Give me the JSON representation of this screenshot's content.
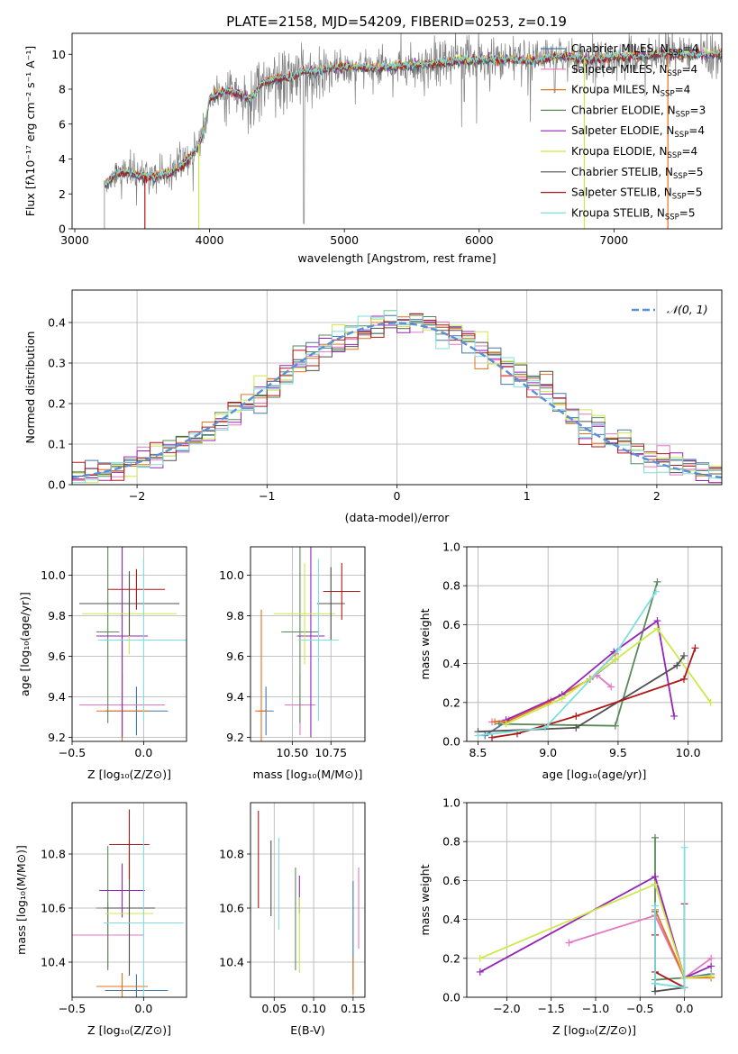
{
  "title": "PLATE=2158, MJD=54209, FIBERID=0253, z=0.19",
  "colors": {
    "chabrier_miles": "#4477aa",
    "salpeter_miles": "#e377c2",
    "kroupa_miles": "#e8701a",
    "chabrier_elodie": "#5a8a5a",
    "salpeter_elodie": "#9525b5",
    "kroupa_elodie": "#cde84a",
    "chabrier_stelib": "#505050",
    "salpeter_stelib": "#b01818",
    "kroupa_stelib": "#7fdede",
    "data": "#808080",
    "normal": "#5b8fd6",
    "grid": "#b0b0b0"
  },
  "legend": [
    {
      "label": "Chabrier MILES, N",
      "sub": "SSP",
      "tail": "=4",
      "color_key": "chabrier_miles"
    },
    {
      "label": "Salpeter MILES, N",
      "sub": "SSP",
      "tail": "=4",
      "color_key": "salpeter_miles"
    },
    {
      "label": "Kroupa MILES, N",
      "sub": "SSP",
      "tail": "=4",
      "color_key": "kroupa_miles"
    },
    {
      "label": "Chabrier ELODIE, N",
      "sub": "SSP",
      "tail": "=3",
      "color_key": "chabrier_elodie"
    },
    {
      "label": "Salpeter ELODIE, N",
      "sub": "SSP",
      "tail": "=4",
      "color_key": "salpeter_elodie"
    },
    {
      "label": "Kroupa ELODIE, N",
      "sub": "SSP",
      "tail": "=4",
      "color_key": "kroupa_elodie"
    },
    {
      "label": "Chabrier STELIB, N",
      "sub": "SSP",
      "tail": "=5",
      "color_key": "chabrier_stelib"
    },
    {
      "label": "Salpeter STELIB, N",
      "sub": "SSP",
      "tail": "=5",
      "color_key": "salpeter_stelib"
    },
    {
      "label": "Kroupa STELIB, N",
      "sub": "SSP",
      "tail": "=5",
      "color_key": "kroupa_stelib"
    }
  ],
  "chart_data": [
    {
      "type": "line",
      "panel": "spectrum",
      "xlabel": "wavelength [Angstrom, rest frame]",
      "ylabel": "Flux [fλ10⁻¹⁷ erg cm⁻² s⁻¹ A⁻¹]",
      "xlim": [
        2980,
        7800
      ],
      "ylim": [
        0,
        11.2
      ],
      "xticks": [
        3000,
        4000,
        5000,
        6000,
        7000
      ],
      "yticks": [
        0,
        2,
        4,
        6,
        8,
        10
      ],
      "grid": false,
      "legend_position": "top-right",
      "continuum": {
        "x": [
          3220,
          3300,
          3400,
          3500,
          3600,
          3700,
          3800,
          3900,
          3960,
          4000,
          4100,
          4200,
          4300,
          4400,
          4500,
          4600,
          4700,
          4800,
          4900,
          5000,
          5200,
          5400,
          5600,
          5800,
          6000,
          6200,
          6400,
          6600,
          6800,
          7000,
          7200,
          7400
        ],
        "y": [
          2.4,
          3.2,
          3.2,
          3.0,
          3.0,
          3.2,
          3.6,
          4.5,
          5.6,
          7.5,
          7.9,
          7.8,
          7.4,
          8.4,
          8.6,
          8.7,
          9.0,
          9.0,
          9.2,
          9.3,
          9.2,
          9.3,
          9.4,
          9.6,
          9.7,
          9.7,
          9.6,
          9.9,
          9.7,
          9.8,
          9.9,
          10.0
        ]
      },
      "model_start": [
        3220,
        3220,
        3220,
        3220,
        3220,
        3220,
        3220,
        3220,
        3220
      ],
      "model_end": [
        7800,
        7800,
        7800,
        7800,
        7800,
        7800,
        7800,
        7800,
        7800
      ],
      "drop_edges": [
        3520,
        3920,
        6780,
        7400
      ]
    },
    {
      "type": "bar",
      "panel": "residual-histogram",
      "xlabel": "(data-model)/error",
      "ylabel": "Normed distribution",
      "xlim": [
        -2.5,
        2.5
      ],
      "ylim": [
        0,
        0.48
      ],
      "xticks": [
        -2,
        -1,
        0,
        1,
        2
      ],
      "yticks": [
        0.0,
        0.1,
        0.2,
        0.3,
        0.4
      ],
      "grid": true,
      "legend_position": "top-right",
      "normal_label": "𝒩(0, 1)",
      "bin_width": 0.1
    },
    {
      "type": "scatter",
      "panel": "age-vs-Z",
      "xlabel": "Z [log₁₀(Z/Z⊙)]",
      "ylabel": "age  [log₁₀(age/yr)]",
      "xlim": [
        -0.5,
        0.3
      ],
      "ylim": [
        9.18,
        10.14
      ],
      "xticks": [
        -0.5,
        0.0
      ],
      "yticks": [
        9.2,
        9.4,
        9.6,
        9.8,
        10.0
      ],
      "grid": true,
      "points": [
        {
          "key": "chabrier_miles",
          "x": -0.05,
          "xerr": 0.22,
          "y": 9.33,
          "yerr": 0.12
        },
        {
          "key": "salpeter_miles",
          "x": -0.15,
          "xerr": 0.3,
          "y": 9.36,
          "yerr": 0.15
        },
        {
          "key": "kroupa_miles",
          "x": -0.15,
          "xerr": 0.18,
          "y": 9.33,
          "yerr": 0.35
        },
        {
          "key": "chabrier_elodie",
          "x": -0.25,
          "xerr": 0.08,
          "y": 9.72,
          "yerr": 0.45
        },
        {
          "key": "salpeter_elodie",
          "x": -0.15,
          "xerr": 0.18,
          "y": 9.7,
          "yerr": 0.5
        },
        {
          "key": "kroupa_elodie",
          "x": -0.1,
          "xerr": 0.33,
          "y": 9.81,
          "yerr": 0.2
        },
        {
          "key": "chabrier_stelib",
          "x": -0.1,
          "xerr": 0.35,
          "y": 9.86,
          "yerr": 0.16
        },
        {
          "key": "salpeter_stelib",
          "x": -0.05,
          "xerr": 0.2,
          "y": 9.93,
          "yerr": 0.1
        },
        {
          "key": "kroupa_stelib",
          "x": 0.0,
          "xerr": 0.32,
          "y": 9.68,
          "yerr": 0.4
        }
      ]
    },
    {
      "type": "scatter",
      "panel": "age-vs-mass",
      "xlabel": "mass [log₁₀(M/M⊙)]",
      "ylabel": "",
      "xlim": [
        10.23,
        10.97
      ],
      "ylim": [
        9.18,
        10.14
      ],
      "xticks": [
        10.5,
        10.75
      ],
      "yticks": [
        9.2,
        9.4,
        9.6,
        9.8,
        10.0
      ],
      "grid": true,
      "points": [
        {
          "key": "chabrier_miles",
          "x": 10.33,
          "xerr": 0.05,
          "y": 9.33,
          "yerr": 0.12
        },
        {
          "key": "salpeter_miles",
          "x": 10.55,
          "xerr": 0.1,
          "y": 9.36,
          "yerr": 0.15
        },
        {
          "key": "kroupa_miles",
          "x": 10.3,
          "xerr": 0.04,
          "y": 9.33,
          "yerr": 0.5
        },
        {
          "key": "chabrier_elodie",
          "x": 10.55,
          "xerr": 0.12,
          "y": 9.72,
          "yerr": 0.45
        },
        {
          "key": "salpeter_elodie",
          "x": 10.62,
          "xerr": 0.09,
          "y": 9.7,
          "yerr": 0.5
        },
        {
          "key": "kroupa_elodie",
          "x": 10.58,
          "xerr": 0.2,
          "y": 9.81,
          "yerr": 0.25
        },
        {
          "key": "chabrier_stelib",
          "x": 10.75,
          "xerr": 0.09,
          "y": 9.86,
          "yerr": 0.18
        },
        {
          "key": "salpeter_stelib",
          "x": 10.82,
          "xerr": 0.12,
          "y": 9.92,
          "yerr": 0.14
        },
        {
          "key": "kroupa_stelib",
          "x": 10.67,
          "xerr": 0.13,
          "y": 9.68,
          "yerr": 0.4
        }
      ]
    },
    {
      "type": "line",
      "panel": "mass-weight-vs-age",
      "xlabel": "age  [log₁₀(age/yr)]",
      "ylabel": "mass weight",
      "xlim": [
        8.42,
        10.24
      ],
      "ylim": [
        0,
        1.0
      ],
      "xticks": [
        8.5,
        9.0,
        9.5,
        10.0
      ],
      "yticks": [
        0.0,
        0.2,
        0.4,
        0.6,
        0.8,
        1.0
      ],
      "grid": true,
      "series": [
        {
          "key": "chabrier_miles",
          "x": [
            8.55,
            8.7,
            9.0,
            9.3,
            9.48
          ],
          "y": [
            0.03,
            0.1,
            0.2,
            0.32,
            0.42
          ]
        },
        {
          "key": "salpeter_miles",
          "x": [
            8.6,
            8.72,
            9.02,
            9.35,
            9.45
          ],
          "y": [
            0.1,
            0.11,
            0.21,
            0.34,
            0.28
          ]
        },
        {
          "key": "kroupa_miles",
          "x": [
            8.62,
            8.7,
            9.0,
            9.3,
            9.48
          ],
          "y": [
            0.1,
            0.1,
            0.2,
            0.32,
            0.45
          ]
        },
        {
          "key": "chabrier_elodie",
          "x": [
            8.65,
            9.48,
            9.78
          ],
          "y": [
            0.09,
            0.08,
            0.82
          ]
        },
        {
          "key": "salpeter_elodie",
          "x": [
            8.7,
            9.1,
            9.47,
            9.78,
            9.9
          ],
          "y": [
            0.11,
            0.24,
            0.46,
            0.62,
            0.13
          ]
        },
        {
          "key": "kroupa_elodie",
          "x": [
            8.7,
            9.1,
            9.48,
            9.78,
            10.16
          ],
          "y": [
            0.09,
            0.22,
            0.42,
            0.58,
            0.2
          ]
        },
        {
          "key": "chabrier_stelib",
          "x": [
            8.5,
            9.2,
            9.92,
            9.97
          ],
          "y": [
            0.05,
            0.07,
            0.39,
            0.44
          ]
        },
        {
          "key": "salpeter_stelib",
          "x": [
            8.6,
            8.78,
            9.2,
            9.97,
            10.05
          ],
          "y": [
            0.02,
            0.04,
            0.13,
            0.32,
            0.48
          ]
        },
        {
          "key": "kroupa_stelib",
          "x": [
            8.5,
            8.98,
            9.5,
            9.77
          ],
          "y": [
            0.03,
            0.07,
            0.47,
            0.77
          ]
        }
      ]
    },
    {
      "type": "scatter",
      "panel": "mass-vs-Z",
      "xlabel": "Z [log₁₀(Z/Z⊙)]",
      "ylabel": "mass [log₁₀(M/M⊙)]",
      "xlim": [
        -0.5,
        0.3
      ],
      "ylim": [
        10.27,
        10.99
      ],
      "xticks": [
        -0.5,
        0.0
      ],
      "yticks": [
        10.4,
        10.6,
        10.8
      ],
      "grid": true,
      "points": [
        {
          "key": "chabrier_miles",
          "x": -0.05,
          "xerr": 0.22,
          "y": 10.295,
          "yerr": 0.06
        },
        {
          "key": "salpeter_miles",
          "x": -0.25,
          "xerr": 0.25,
          "y": 10.5,
          "yerr": 0.12
        },
        {
          "key": "kroupa_miles",
          "x": -0.15,
          "xerr": 0.18,
          "y": 10.31,
          "yerr": 0.05
        },
        {
          "key": "chabrier_elodie",
          "x": -0.25,
          "xerr": 0.08,
          "y": 10.6,
          "yerr": 0.23
        },
        {
          "key": "salpeter_elodie",
          "x": -0.15,
          "xerr": 0.16,
          "y": 10.665,
          "yerr": 0.1
        },
        {
          "key": "kroupa_elodie",
          "x": -0.1,
          "xerr": 0.17,
          "y": 10.58,
          "yerr": 0.2
        },
        {
          "key": "chabrier_stelib",
          "x": -0.1,
          "xerr": 0.18,
          "y": 10.6,
          "yerr": 0.25
        },
        {
          "key": "salpeter_stelib",
          "x": -0.1,
          "xerr": 0.14,
          "y": 10.835,
          "yerr": 0.13
        },
        {
          "key": "kroupa_stelib",
          "x": 0.0,
          "xerr": 0.28,
          "y": 10.545,
          "yerr": 0.32
        }
      ]
    },
    {
      "type": "scatter",
      "panel": "mass-vs-ebv",
      "xlabel": "E(B-V)",
      "ylabel": "",
      "xlim": [
        0.02,
        0.165
      ],
      "ylim": [
        10.27,
        10.99
      ],
      "xticks": [
        0.05,
        0.1,
        0.15
      ],
      "yticks": [
        10.4,
        10.6,
        10.8
      ],
      "grid": true,
      "points": [
        {
          "key": "chabrier_miles",
          "x": 0.15,
          "yerr": 0.2,
          "y": 10.5
        },
        {
          "key": "salpeter_miles",
          "x": 0.157,
          "yerr": 0.15,
          "y": 10.6
        },
        {
          "key": "kroupa_miles",
          "x": 0.15,
          "yerr": 0.07,
          "y": 10.35
        },
        {
          "key": "chabrier_elodie",
          "x": 0.077,
          "yerr": 0.19,
          "y": 10.56
        },
        {
          "key": "salpeter_elodie",
          "x": 0.082,
          "yerr": 0.07,
          "y": 10.65
        },
        {
          "key": "kroupa_elodie",
          "x": 0.082,
          "yerr": 0.14,
          "y": 10.5
        },
        {
          "key": "chabrier_stelib",
          "x": 0.046,
          "yerr": 0.14,
          "y": 10.71
        },
        {
          "key": "salpeter_stelib",
          "x": 0.03,
          "yerr": 0.18,
          "y": 10.78
        },
        {
          "key": "kroupa_stelib",
          "x": 0.056,
          "yerr": 0.17,
          "y": 10.69
        }
      ]
    },
    {
      "type": "line",
      "panel": "mass-weight-vs-Z",
      "xlabel": "Z [log₁₀(Z/Z⊙)]",
      "ylabel": "mass weight",
      "xlim": [
        -2.45,
        0.42
      ],
      "ylim": [
        0,
        1.0
      ],
      "xticks": [
        -2.0,
        -1.5,
        -1.0,
        -0.5,
        0.0
      ],
      "yticks": [
        0.0,
        0.2,
        0.4,
        0.6,
        0.8,
        1.0
      ],
      "grid": true,
      "series": [
        {
          "key": "chabrier_miles",
          "x": [
            -0.33,
            0.0,
            0.3
          ],
          "y": [
            0.42,
            0.1,
            0.12
          ]
        },
        {
          "key": "salpeter_miles",
          "x": [
            -1.3,
            -0.33,
            0.0,
            0.3
          ],
          "y": [
            0.28,
            0.42,
            0.1,
            0.2
          ]
        },
        {
          "key": "kroupa_miles",
          "x": [
            -0.33,
            0.0,
            0.3
          ],
          "y": [
            0.45,
            0.1,
            0.1
          ]
        },
        {
          "key": "chabrier_elodie",
          "x": [
            -0.33,
            -0.33,
            0.0
          ],
          "y": [
            0.82,
            0.09,
            0.1
          ]
        },
        {
          "key": "salpeter_elodie",
          "x": [
            -2.3,
            -0.33,
            0.0,
            0.3
          ],
          "y": [
            0.13,
            0.62,
            0.1,
            0.16
          ]
        },
        {
          "key": "kroupa_elodie",
          "x": [
            -2.3,
            -0.33,
            0.0,
            0.3
          ],
          "y": [
            0.2,
            0.58,
            0.1,
            0.11
          ]
        },
        {
          "key": "chabrier_stelib",
          "x": [
            -0.33,
            -0.33,
            -0.33,
            0.0
          ],
          "y": [
            0.44,
            0.07,
            0.03,
            0.05
          ]
        },
        {
          "key": "salpeter_stelib",
          "x": [
            -0.33,
            -0.33,
            0.0,
            0.0
          ],
          "y": [
            0.32,
            0.13,
            0.05,
            0.48
          ]
        },
        {
          "key": "kroupa_stelib",
          "x": [
            -0.33,
            -0.33,
            0.0,
            0.0
          ],
          "y": [
            0.47,
            0.07,
            0.05,
            0.77
          ]
        }
      ]
    }
  ]
}
